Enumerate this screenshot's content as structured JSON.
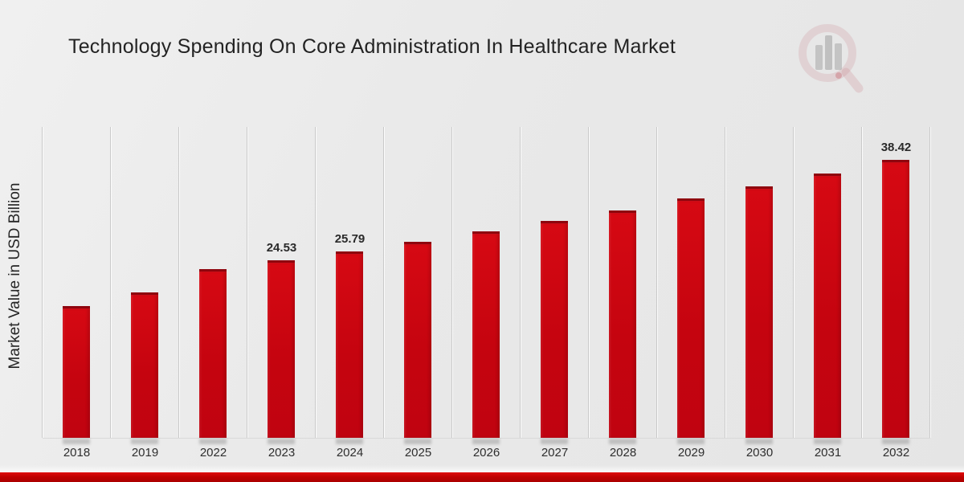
{
  "chart_data": {
    "type": "bar",
    "title": "Technology Spending On Core Administration In Healthcare Market",
    "xlabel": "",
    "ylabel": "Market Value in USD Billion",
    "categories": [
      "2018",
      "2019",
      "2022",
      "2023",
      "2024",
      "2025",
      "2026",
      "2027",
      "2028",
      "2029",
      "2030",
      "2031",
      "2032"
    ],
    "values": [
      18.2,
      20.15,
      23.34,
      24.53,
      25.79,
      27.11,
      28.5,
      29.95,
      31.48,
      33.1,
      34.79,
      36.57,
      38.42
    ],
    "data_labels": [
      "",
      "",
      "",
      "24.53",
      "25.79",
      "",
      "",
      "",
      "",
      "",
      "",
      "",
      "38.42"
    ],
    "ylim": [
      0,
      43
    ],
    "grid": "vertical-category-separators",
    "legend": "none",
    "bar_color": "#c5040f",
    "value_label_color": "#2a2a2a"
  },
  "watermark": {
    "icon": "magnifier-bar-chart-logo",
    "accent_color": "#c97c85",
    "bar_color": "#9a9a9a"
  },
  "footer": {
    "bar_color": "#c00000"
  }
}
